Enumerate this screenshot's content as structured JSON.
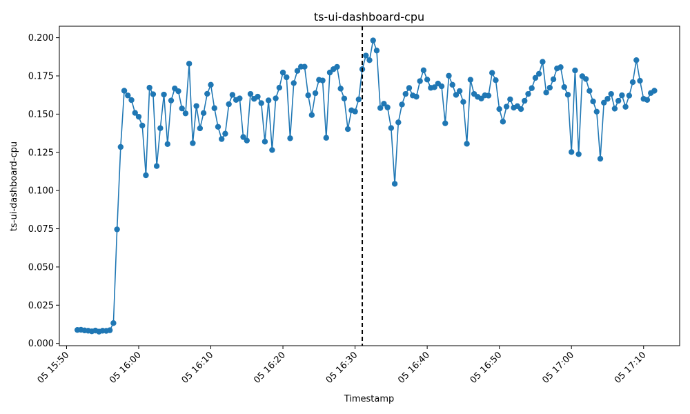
{
  "chart_data": {
    "type": "line",
    "title": "ts-ui-dashboard-cpu",
    "xlabel": "Timestamp",
    "ylabel": "ts-ui-dashboard-cpu",
    "x_ticks": [
      "05 15:50",
      "05 16:00",
      "05 16:10",
      "05 16:20",
      "05 16:30",
      "05 16:40",
      "05 16:50",
      "05 17:00",
      "05 17:10"
    ],
    "y_ticks": [
      "0.000",
      "0.025",
      "0.050",
      "0.075",
      "0.100",
      "0.125",
      "0.150",
      "0.175",
      "0.200"
    ],
    "ylim": [
      -0.0015,
      0.2075
    ],
    "xlim": [
      "05 15:49",
      "05 17:15"
    ],
    "marker_line": {
      "x": "05 16:31",
      "style": "dashed",
      "color": "#000000"
    },
    "series": [
      {
        "color": "#1f77b4",
        "marker": "circle",
        "x": [
          "05 15:51:30",
          "05 15:52:00",
          "05 15:52:30",
          "05 15:53:00",
          "05 15:53:30",
          "05 15:54:00",
          "05 15:54:30",
          "05 15:55:00",
          "05 15:55:30",
          "05 15:56:00",
          "05 15:56:30",
          "05 15:57:00",
          "05 15:57:30",
          "05 15:58:00",
          "05 15:58:30",
          "05 15:59:00",
          "05 15:59:30",
          "05 16:00:00",
          "05 16:00:30",
          "05 16:01:00",
          "05 16:01:30",
          "05 16:02:00",
          "05 16:02:30",
          "05 16:03:00",
          "05 16:03:30",
          "05 16:04:00",
          "05 16:04:30",
          "05 16:05:00",
          "05 16:05:30",
          "05 16:06:00",
          "05 16:06:30",
          "05 16:07:00",
          "05 16:07:30",
          "05 16:08:00",
          "05 16:08:30",
          "05 16:09:00",
          "05 16:09:30",
          "05 16:10:00",
          "05 16:10:30",
          "05 16:11:00",
          "05 16:11:30",
          "05 16:12:00",
          "05 16:12:30",
          "05 16:13:00",
          "05 16:13:30",
          "05 16:14:00",
          "05 16:14:30",
          "05 16:15:00",
          "05 16:15:30",
          "05 16:16:00",
          "05 16:16:30",
          "05 16:17:00",
          "05 16:17:30",
          "05 16:18:00",
          "05 16:18:30",
          "05 16:19:00",
          "05 16:19:30",
          "05 16:20:00",
          "05 16:20:30",
          "05 16:21:00",
          "05 16:21:30",
          "05 16:22:00",
          "05 16:22:30",
          "05 16:23:00",
          "05 16:23:30",
          "05 16:24:00",
          "05 16:24:30",
          "05 16:25:00",
          "05 16:25:30",
          "05 16:26:00",
          "05 16:26:30",
          "05 16:27:00",
          "05 16:27:30",
          "05 16:28:00",
          "05 16:28:30",
          "05 16:29:00",
          "05 16:29:30",
          "05 16:30:00",
          "05 16:30:30",
          "05 16:31:00",
          "05 16:31:30",
          "05 16:32:00",
          "05 16:32:30",
          "05 16:33:00",
          "05 16:33:30",
          "05 16:34:00",
          "05 16:34:30",
          "05 16:35:00",
          "05 16:35:30",
          "05 16:36:00",
          "05 16:36:30",
          "05 16:37:00",
          "05 16:37:30",
          "05 16:38:00",
          "05 16:38:30",
          "05 16:39:00",
          "05 16:39:30",
          "05 16:40:00",
          "05 16:40:30",
          "05 16:41:00",
          "05 16:41:30",
          "05 16:42:00",
          "05 16:42:30",
          "05 16:43:00",
          "05 16:43:30",
          "05 16:44:00",
          "05 16:44:30",
          "05 16:45:00",
          "05 16:45:30",
          "05 16:46:00",
          "05 16:46:30",
          "05 16:47:00",
          "05 16:47:30",
          "05 16:48:00",
          "05 16:48:30",
          "05 16:49:00",
          "05 16:49:30",
          "05 16:50:00",
          "05 16:50:30",
          "05 16:51:00",
          "05 16:51:30",
          "05 16:52:00",
          "05 16:52:30",
          "05 16:53:00",
          "05 16:53:30",
          "05 16:54:00",
          "05 16:54:30",
          "05 16:55:00",
          "05 16:55:30",
          "05 16:56:00",
          "05 16:56:30",
          "05 16:57:00",
          "05 16:57:30",
          "05 16:58:00",
          "05 16:58:30",
          "05 16:59:00",
          "05 16:59:30",
          "05 17:00:00",
          "05 17:00:30",
          "05 17:01:00",
          "05 17:01:30",
          "05 17:02:00",
          "05 17:02:30",
          "05 17:03:00",
          "05 17:03:30",
          "05 17:04:00",
          "05 17:04:30",
          "05 17:05:00",
          "05 17:05:30",
          "05 17:06:00",
          "05 17:06:30",
          "05 17:07:00",
          "05 17:07:30",
          "05 17:08:00",
          "05 17:08:30",
          "05 17:09:00",
          "05 17:09:30",
          "05 17:10:00",
          "05 17:10:30",
          "05 17:11:00",
          "05 17:11:30"
        ],
        "values": [
          0.0088,
          0.0089,
          0.0085,
          0.0083,
          0.0079,
          0.0084,
          0.0077,
          0.0083,
          0.0082,
          0.0086,
          0.0133,
          0.0746,
          0.1285,
          0.1653,
          0.1622,
          0.1592,
          0.1508,
          0.1483,
          0.1425,
          0.11,
          0.1673,
          0.163,
          0.116,
          0.1408,
          0.1628,
          0.1304,
          0.1589,
          0.1668,
          0.165,
          0.1537,
          0.1505,
          0.183,
          0.131,
          0.1553,
          0.1407,
          0.1507,
          0.1633,
          0.1692,
          0.1539,
          0.1417,
          0.1337,
          0.1372,
          0.1565,
          0.1626,
          0.1593,
          0.1603,
          0.135,
          0.1327,
          0.1632,
          0.16,
          0.1614,
          0.1572,
          0.132,
          0.159,
          0.1265,
          0.1603,
          0.1673,
          0.1772,
          0.1741,
          0.1342,
          0.1703,
          0.1783,
          0.181,
          0.181,
          0.1623,
          0.1494,
          0.1637,
          0.1724,
          0.172,
          0.1345,
          0.1772,
          0.1794,
          0.1809,
          0.1667,
          0.1602,
          0.1402,
          0.1525,
          0.1517,
          0.1596,
          0.1794,
          0.1883,
          0.1853,
          0.1982,
          0.1916,
          0.154,
          0.1568,
          0.1544,
          0.1409,
          0.1044,
          0.1446,
          0.1563,
          0.1632,
          0.1671,
          0.1622,
          0.1614,
          0.1716,
          0.1787,
          0.1726,
          0.1672,
          0.1676,
          0.17,
          0.1682,
          0.144,
          0.1751,
          0.1692,
          0.1626,
          0.1651,
          0.158,
          0.1306,
          0.1725,
          0.1632,
          0.1613,
          0.1602,
          0.1623,
          0.1621,
          0.177,
          0.1722,
          0.1533,
          0.1451,
          0.1549,
          0.1597,
          0.1542,
          0.1552,
          0.1533,
          0.1587,
          0.1632,
          0.167,
          0.1737,
          0.1764,
          0.1842,
          0.1641,
          0.1673,
          0.1728,
          0.1799,
          0.1807,
          0.1677,
          0.1627,
          0.1252,
          0.1786,
          0.1238,
          0.1748,
          0.173,
          0.1652,
          0.1583,
          0.1516,
          0.1208,
          0.1575,
          0.16,
          0.1632,
          0.1536,
          0.1587,
          0.1623,
          0.1548,
          0.1621,
          0.1709,
          0.1853,
          0.1718,
          0.16,
          0.1593,
          0.1638,
          0.1653
        ]
      }
    ]
  }
}
